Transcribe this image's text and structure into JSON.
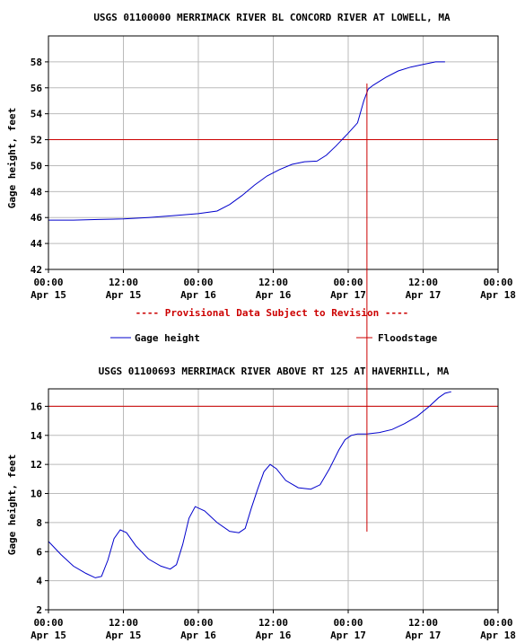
{
  "notice": "---- Provisional Data Subject to Revision ----",
  "legend": {
    "gage_label": "Gage height",
    "flood_label": "Floodstage",
    "gage_color": "#0000cc",
    "flood_color": "#cc0000"
  },
  "chart_data": [
    {
      "type": "line",
      "title": "USGS 01100000 MERRIMACK RIVER BL CONCORD RIVER AT LOWELL, MA",
      "ylabel": "Gage height, feet",
      "xlim_hours": [
        0,
        72
      ],
      "ylim": [
        42,
        60
      ],
      "yticks": [
        42,
        44,
        46,
        48,
        50,
        52,
        54,
        56,
        58
      ],
      "xticks": [
        {
          "t": 0,
          "time": "00:00",
          "date": "Apr 15"
        },
        {
          "t": 12,
          "time": "12:00",
          "date": "Apr 15"
        },
        {
          "t": 24,
          "time": "00:00",
          "date": "Apr 16"
        },
        {
          "t": 36,
          "time": "12:00",
          "date": "Apr 16"
        },
        {
          "t": 48,
          "time": "00:00",
          "date": "Apr 17"
        },
        {
          "t": 60,
          "time": "12:00",
          "date": "Apr 17"
        },
        {
          "t": 72,
          "time": "00:00",
          "date": "Apr 18"
        }
      ],
      "grid": true,
      "floodstage": 52,
      "current_marker_hour": 51,
      "series": [
        {
          "name": "Gage height",
          "x": [
            0,
            4,
            8,
            12,
            16,
            20,
            24,
            27,
            29,
            31,
            33,
            35,
            37,
            39,
            41,
            43,
            44.5,
            46,
            48,
            49.5,
            50.5,
            51.2,
            52,
            54,
            56,
            58,
            60,
            62,
            63.5
          ],
          "y": [
            45.8,
            45.8,
            45.85,
            45.9,
            46.0,
            46.15,
            46.3,
            46.5,
            47.0,
            47.7,
            48.5,
            49.2,
            49.7,
            50.1,
            50.3,
            50.35,
            50.8,
            51.5,
            52.5,
            53.3,
            55.0,
            55.9,
            56.2,
            56.8,
            57.3,
            57.6,
            57.8,
            58.0,
            58.0
          ]
        }
      ]
    },
    {
      "type": "line",
      "title": "USGS 01100693 MERRIMACK RIVER ABOVE RT 125 AT HAVERHILL, MA",
      "ylabel": "Gage height, feet",
      "xlim_hours": [
        0,
        72
      ],
      "ylim": [
        2,
        17.2
      ],
      "yticks": [
        2,
        4,
        6,
        8,
        10,
        12,
        14,
        16
      ],
      "xticks": [
        {
          "t": 0,
          "time": "00:00",
          "date": "Apr 15"
        },
        {
          "t": 12,
          "time": "12:00",
          "date": "Apr 15"
        },
        {
          "t": 24,
          "time": "00:00",
          "date": "Apr 16"
        },
        {
          "t": 36,
          "time": "12:00",
          "date": "Apr 16"
        },
        {
          "t": 48,
          "time": "00:00",
          "date": "Apr 17"
        },
        {
          "t": 60,
          "time": "12:00",
          "date": "Apr 17"
        },
        {
          "t": 72,
          "time": "00:00",
          "date": "Apr 18"
        }
      ],
      "grid": true,
      "floodstage": 16,
      "current_marker_hour": 51,
      "series": [
        {
          "name": "Gage height",
          "x": [
            0,
            2,
            4,
            6,
            7.5,
            8.5,
            9.5,
            10.5,
            11.5,
            12.5,
            14,
            16,
            18,
            19.5,
            20.5,
            21.5,
            22.5,
            23.5,
            25,
            27,
            29,
            30.5,
            31.5,
            32.5,
            33.5,
            34.5,
            35.5,
            36.5,
            38,
            40,
            42,
            43.5,
            45,
            46.5,
            47.5,
            48.5,
            49.5,
            51,
            53,
            55,
            57,
            59,
            61,
            62.5,
            63.5,
            64.5
          ],
          "y": [
            6.7,
            5.8,
            5.0,
            4.5,
            4.2,
            4.3,
            5.4,
            6.9,
            7.5,
            7.3,
            6.4,
            5.5,
            5.0,
            4.8,
            5.1,
            6.5,
            8.3,
            9.1,
            8.8,
            8.0,
            7.4,
            7.3,
            7.6,
            9.0,
            10.3,
            11.5,
            12.0,
            11.7,
            10.9,
            10.4,
            10.3,
            10.6,
            11.7,
            13.0,
            13.7,
            14.0,
            14.1,
            14.1,
            14.2,
            14.4,
            14.8,
            15.3,
            16.0,
            16.6,
            16.9,
            17.0
          ]
        }
      ]
    }
  ]
}
